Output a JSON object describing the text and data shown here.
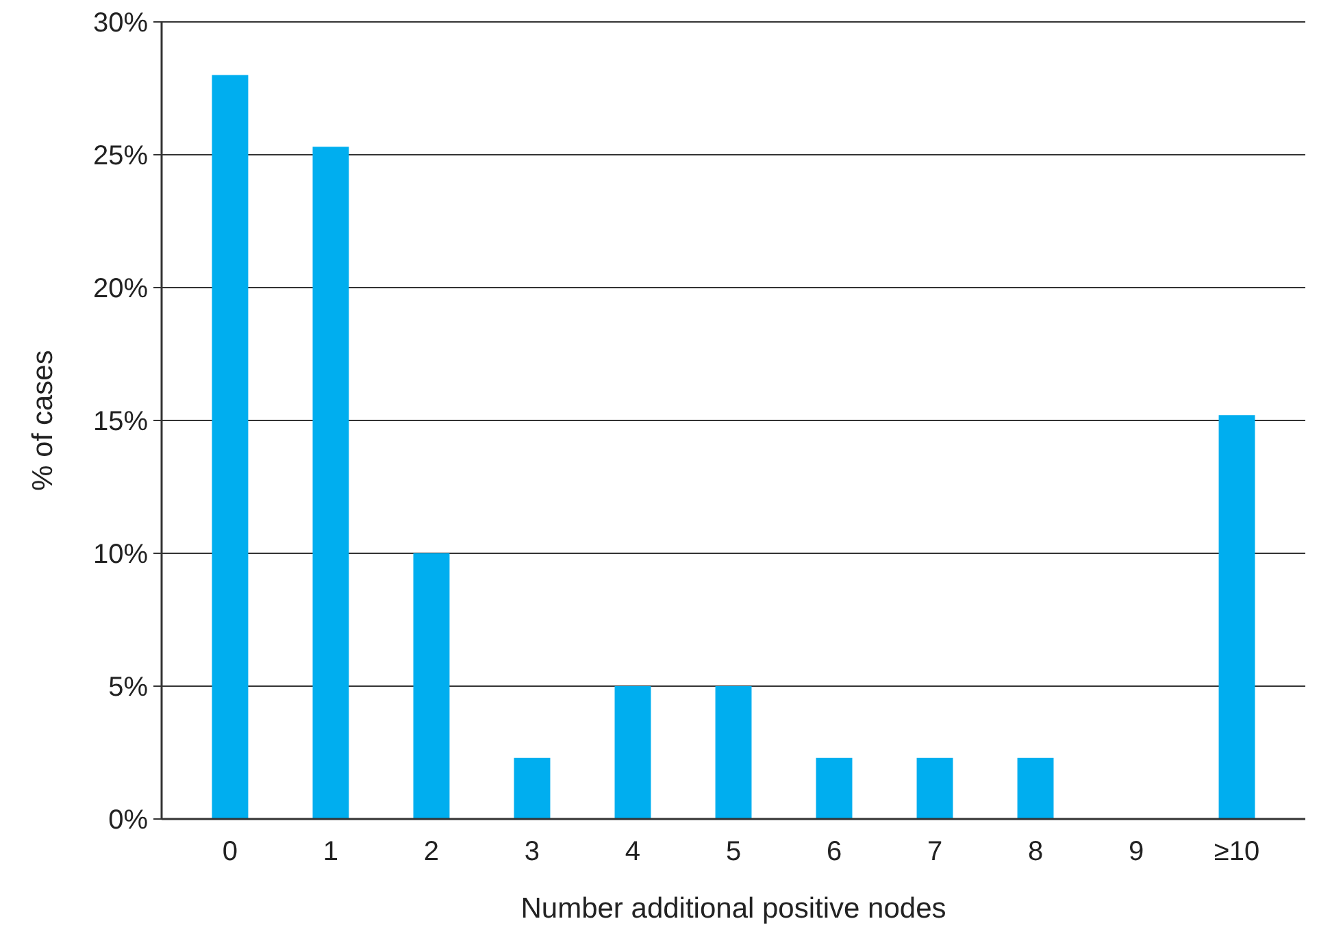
{
  "chart_data": {
    "type": "bar",
    "xlabel": "Number additional positive nodes",
    "ylabel": "% of cases",
    "categories": [
      "0",
      "1",
      "2",
      "3",
      "4",
      "5",
      "6",
      "7",
      "8",
      "9",
      "≥10"
    ],
    "values": [
      28,
      25.3,
      10,
      2.3,
      5,
      5,
      2.3,
      2.3,
      2.3,
      0,
      15.2
    ],
    "color": "#00aeef",
    "ylim": [
      0,
      30
    ],
    "yticks": [
      {
        "value": 0,
        "label": "0%"
      },
      {
        "value": 5,
        "label": "5%"
      },
      {
        "value": 10,
        "label": "10%"
      },
      {
        "value": 15,
        "label": "15%"
      },
      {
        "value": 20,
        "label": "20%"
      },
      {
        "value": 25,
        "label": "25%"
      },
      {
        "value": 30,
        "label": "30%"
      }
    ],
    "grid": "y"
  }
}
